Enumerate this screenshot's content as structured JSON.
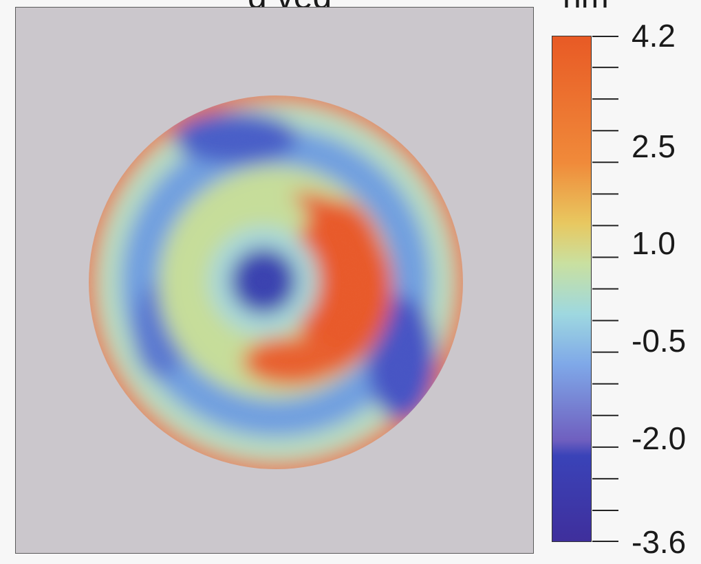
{
  "title_fragment": "g         ved",
  "unit": "nm",
  "chart_data": {
    "type": "heatmap",
    "title": "",
    "colorbar": {
      "min": -3.6,
      "max": 4.2,
      "ticks": [
        "4.2",
        "2.5",
        "1.0",
        "-0.5",
        "-2.0",
        "-3.6"
      ],
      "tick_values": [
        4.2,
        2.5,
        1.0,
        -0.5,
        -2.0,
        -3.6
      ],
      "colors": [
        "#3f2f9c",
        "#3a43b8",
        "#6f5fbf",
        "#7fa8e8",
        "#9ed8e0",
        "#c9e0a0",
        "#e8c860",
        "#f08a3a",
        "#e85a25"
      ]
    },
    "description_values": {
      "center_low": -3.0,
      "inner_ring_high": 3.8,
      "middle_ring_low": -2.2,
      "outer_edge_high": 3.5
    }
  }
}
